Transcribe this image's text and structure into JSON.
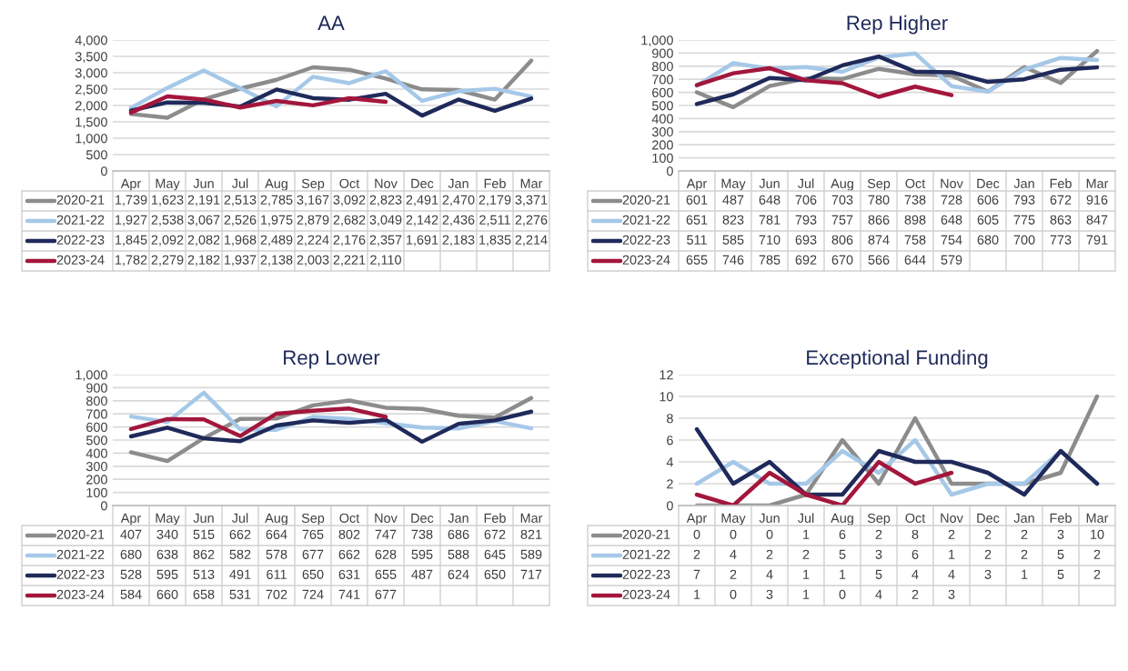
{
  "chart_data": [
    {
      "type": "line",
      "title": "AA",
      "categories": [
        "Apr",
        "May",
        "Jun",
        "Jul",
        "Aug",
        "Sep",
        "Oct",
        "Nov",
        "Dec",
        "Jan",
        "Feb",
        "Mar"
      ],
      "ylim": [
        0,
        4000
      ],
      "yticks": [
        0,
        500,
        {
          "value": 1000,
          "label": "1,000"
        },
        {
          "value": 1500,
          "label": "1,500"
        },
        {
          "value": 2000,
          "label": "2,000"
        },
        {
          "value": 2500,
          "label": "2,500"
        },
        {
          "value": 3000,
          "label": "3,000"
        },
        {
          "value": 3500,
          "label": "3,500"
        },
        {
          "value": 4000,
          "label": "4,000"
        }
      ],
      "grid": "y",
      "legend": "bottom",
      "series": [
        {
          "name": "2020-21",
          "color": "#8c8c8c",
          "values": [
            1739,
            1623,
            2191,
            2513,
            2785,
            3167,
            3092,
            2823,
            2491,
            2470,
            2179,
            3371
          ],
          "value_labels": [
            "1,739",
            "1,623",
            "2,191",
            "2,513",
            "2,785",
            "3,167",
            "3,092",
            "2,823",
            "2,491",
            "2,470",
            "2,179",
            "3,371"
          ]
        },
        {
          "name": "2021-22",
          "color": "#a6c8e8",
          "values": [
            1927,
            2538,
            3067,
            2526,
            1975,
            2879,
            2682,
            3049,
            2142,
            2436,
            2511,
            2276
          ],
          "value_labels": [
            "1,927",
            "2,538",
            "3,067",
            "2,526",
            "1,975",
            "2,879",
            "2,682",
            "3,049",
            "2,142",
            "2,436",
            "2,511",
            "2,276"
          ]
        },
        {
          "name": "2022-23",
          "color": "#1f2a5a",
          "values": [
            1845,
            2092,
            2082,
            1968,
            2489,
            2224,
            2176,
            2357,
            1691,
            2183,
            1835,
            2214
          ],
          "value_labels": [
            "1,845",
            "2,092",
            "2,082",
            "1,968",
            "2,489",
            "2,224",
            "2,176",
            "2,357",
            "1,691",
            "2,183",
            "1,835",
            "2,214"
          ]
        },
        {
          "name": "2023-24",
          "color": "#a3163c",
          "values": [
            1782,
            2279,
            2182,
            1937,
            2138,
            2003,
            2221,
            2110,
            null,
            null,
            null,
            null
          ],
          "value_labels": [
            "1,782",
            "2,279",
            "2,182",
            "1,937",
            "2,138",
            "2,003",
            "2,221",
            "2,110",
            null,
            null,
            null,
            null
          ]
        }
      ]
    },
    {
      "type": "line",
      "title": "Rep Higher",
      "categories": [
        "Apr",
        "May",
        "Jun",
        "Jul",
        "Aug",
        "Sep",
        "Oct",
        "Nov",
        "Dec",
        "Jan",
        "Feb",
        "Mar"
      ],
      "ylim": [
        0,
        1000
      ],
      "yticks": [
        0,
        100,
        200,
        300,
        400,
        500,
        600,
        700,
        800,
        900,
        {
          "value": 1000,
          "label": "1,000"
        }
      ],
      "grid": "y",
      "legend": "bottom",
      "data_labels": true,
      "series": [
        {
          "name": "2020-21",
          "color": "#8c8c8c",
          "values": [
            601,
            487,
            648,
            706,
            703,
            780,
            738,
            728,
            606,
            793,
            672,
            916
          ]
        },
        {
          "name": "2021-22",
          "color": "#a6c8e8",
          "values": [
            651,
            823,
            781,
            793,
            757,
            866,
            898,
            648,
            605,
            775,
            863,
            847
          ]
        },
        {
          "name": "2022-23",
          "color": "#1f2a5a",
          "values": [
            511,
            585,
            710,
            693,
            806,
            874,
            758,
            754,
            680,
            700,
            773,
            791
          ]
        },
        {
          "name": "2023-24",
          "color": "#a3163c",
          "values": [
            655,
            746,
            785,
            692,
            670,
            566,
            644,
            579,
            null,
            null,
            null,
            null
          ]
        }
      ]
    },
    {
      "type": "line",
      "title": "Rep Lower",
      "categories": [
        "Apr",
        "May",
        "Jun",
        "Jul",
        "Aug",
        "Sep",
        "Oct",
        "Nov",
        "Dec",
        "Jan",
        "Feb",
        "Mar"
      ],
      "ylim": [
        0,
        1000
      ],
      "yticks": [
        0,
        100,
        200,
        300,
        400,
        500,
        600,
        700,
        800,
        900,
        {
          "value": 1000,
          "label": "1,000"
        }
      ],
      "grid": "y",
      "legend": "bottom",
      "data_labels": true,
      "series": [
        {
          "name": "2020-21",
          "color": "#8c8c8c",
          "values": [
            407,
            340,
            515,
            662,
            664,
            765,
            802,
            747,
            738,
            686,
            672,
            821
          ]
        },
        {
          "name": "2021-22",
          "color": "#a6c8e8",
          "values": [
            680,
            638,
            862,
            582,
            578,
            677,
            662,
            628,
            595,
            588,
            645,
            589
          ]
        },
        {
          "name": "2022-23",
          "color": "#1f2a5a",
          "values": [
            528,
            595,
            513,
            491,
            611,
            650,
            631,
            655,
            487,
            624,
            650,
            717
          ]
        },
        {
          "name": "2023-24",
          "color": "#a3163c",
          "values": [
            584,
            660,
            658,
            531,
            702,
            724,
            741,
            677,
            null,
            null,
            null,
            null
          ]
        }
      ]
    },
    {
      "type": "line",
      "title": "Exceptional Funding",
      "categories": [
        "Apr",
        "May",
        "Jun",
        "Jul",
        "Aug",
        "Sep",
        "Oct",
        "Nov",
        "Dec",
        "Jan",
        "Feb",
        "Mar"
      ],
      "ylim": [
        0,
        12
      ],
      "yticks": [
        0,
        2,
        4,
        6,
        8,
        10,
        12
      ],
      "grid": "y",
      "legend": "bottom",
      "data_labels": true,
      "series": [
        {
          "name": "2020-21",
          "color": "#8c8c8c",
          "values": [
            0,
            0,
            0,
            1,
            6,
            2,
            8,
            2,
            2,
            2,
            3,
            10
          ]
        },
        {
          "name": "2021-22",
          "color": "#a6c8e8",
          "values": [
            2,
            4,
            2,
            2,
            5,
            3,
            6,
            1,
            2,
            2,
            5,
            2
          ]
        },
        {
          "name": "2022-23",
          "color": "#1f2a5a",
          "values": [
            7,
            2,
            4,
            1,
            1,
            5,
            4,
            4,
            3,
            1,
            5,
            2
          ]
        },
        {
          "name": "2023-24",
          "color": "#a3163c",
          "values": [
            1,
            0,
            3,
            1,
            0,
            4,
            2,
            3,
            null,
            null,
            null,
            null
          ]
        }
      ]
    }
  ]
}
